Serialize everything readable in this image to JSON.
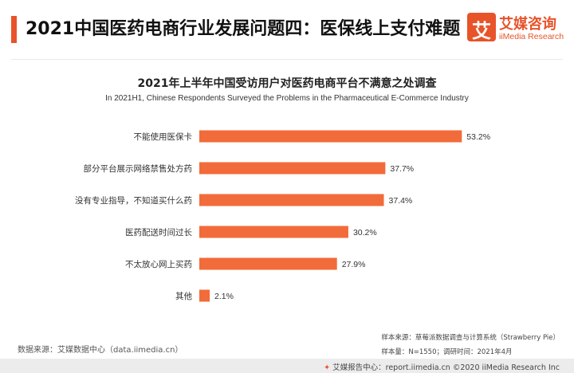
{
  "header": {
    "title": "2021中国医药电商行业发展问题四：医保线上支付难题",
    "logo_cn": "艾媒咨询",
    "logo_en": "iiMedia Research",
    "logo_mark": "艾"
  },
  "colors": {
    "accent": "#e8532a",
    "bar": "#f26b3a",
    "text": "#222222"
  },
  "chart_data": {
    "type": "bar",
    "orientation": "horizontal",
    "title": "2021年上半年中国受访用户对医药电商平台不满意之处调查",
    "subtitle": "In 2021H1, Chinese Respondents Surveyed the Problems in the Pharmaceutical E-Commerce Industry",
    "categories": [
      "不能使用医保卡",
      "部分平台展示网络禁售处方药",
      "没有专业指导，不知道买什么药",
      "医药配送时间过长",
      "不太放心网上买药",
      "其他"
    ],
    "values": [
      53.2,
      37.7,
      37.4,
      30.2,
      27.9,
      2.1
    ],
    "value_labels": [
      "53.2%",
      "37.7%",
      "37.4%",
      "30.2%",
      "27.9%",
      "2.1%"
    ],
    "xlim": [
      0,
      60
    ],
    "grid": false
  },
  "sources": {
    "data_source": "数据来源：艾媒数据中心（data.iimedia.cn）",
    "sample_source": "样本来源：草莓派数据调查与计算系统（Strawberry Pie）",
    "sample_info": "样本量：N=1550；调研时间：2021年4月"
  },
  "footer": {
    "text": "艾媒报告中心：report.iimedia.cn  ©2020  iiMedia Research Inc"
  }
}
